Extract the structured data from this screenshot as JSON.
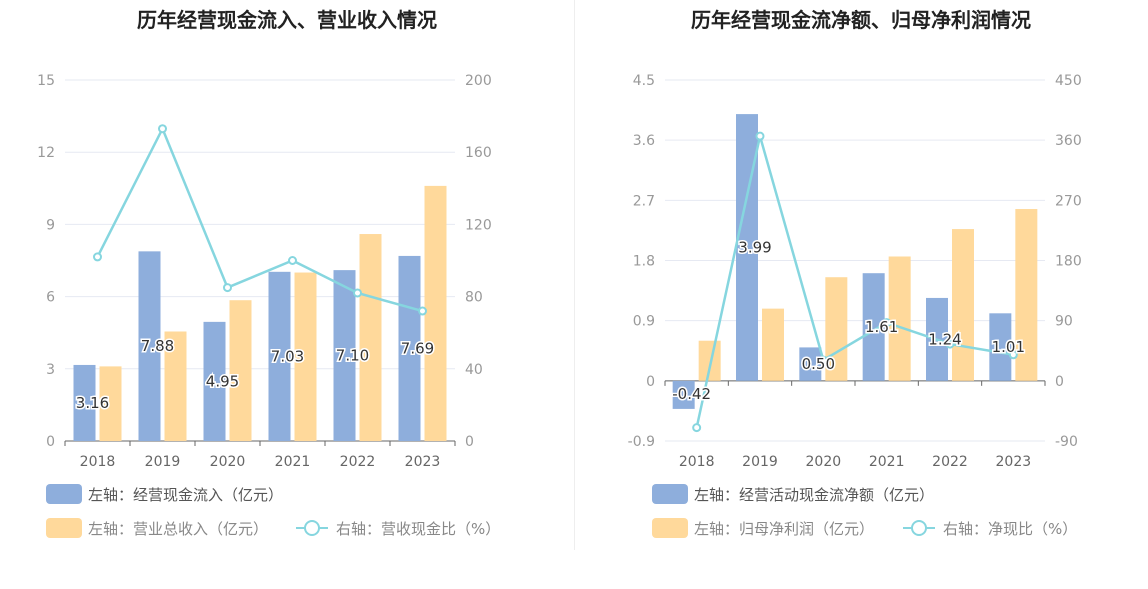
{
  "chart_data": [
    {
      "type": "bar",
      "title": "历年经营现金流入、营业收入情况",
      "categories": [
        "2018",
        "2019",
        "2020",
        "2021",
        "2022",
        "2023"
      ],
      "left_axis": {
        "min": 0,
        "max": 15,
        "ticks": [
          "0",
          "3",
          "6",
          "9",
          "12",
          "15"
        ]
      },
      "right_axis": {
        "min": 0,
        "max": 200,
        "ticks": [
          "0",
          "40",
          "80",
          "120",
          "160",
          "200"
        ]
      },
      "series": [
        {
          "name": "左轴：经营现金流入（亿元）",
          "axis": "left",
          "kind": "bar",
          "color": "#8eaedc",
          "values": [
            3.16,
            7.88,
            4.95,
            7.03,
            7.1,
            7.69
          ],
          "labels": [
            "3.16",
            "7.88",
            "4.95",
            "7.03",
            "7.10",
            "7.69"
          ]
        },
        {
          "name": "左轴：营业总收入（亿元）",
          "axis": "left",
          "kind": "bar",
          "color": "#ffd99b",
          "values": [
            3.1,
            4.55,
            5.85,
            7.0,
            8.6,
            10.6
          ]
        },
        {
          "name": "右轴：营收现金比（%）",
          "axis": "right",
          "kind": "line",
          "color": "#86d6df",
          "values": [
            102,
            173,
            85,
            100,
            82,
            72
          ]
        }
      ]
    },
    {
      "type": "bar",
      "title": "历年经营现金流净额、归母净利润情况",
      "categories": [
        "2018",
        "2019",
        "2020",
        "2021",
        "2022",
        "2023"
      ],
      "left_axis": {
        "min": -0.9,
        "max": 4.5,
        "ticks": [
          "-0.9",
          "0",
          "0.9",
          "1.8",
          "2.7",
          "3.6",
          "4.5"
        ]
      },
      "right_axis": {
        "min": -90,
        "max": 450,
        "ticks": [
          "-90",
          "0",
          "90",
          "180",
          "270",
          "360",
          "450"
        ]
      },
      "series": [
        {
          "name": "左轴：经营活动现金流净额（亿元）",
          "axis": "left",
          "kind": "bar",
          "color": "#8eaedc",
          "values": [
            -0.42,
            3.99,
            0.5,
            1.61,
            1.24,
            1.01
          ],
          "labels": [
            "-0.42",
            "3.99",
            "0.50",
            "1.61",
            "1.24",
            "1.01"
          ]
        },
        {
          "name": "左轴：归母净利润（亿元）",
          "axis": "left",
          "kind": "bar",
          "color": "#ffd99b",
          "values": [
            0.6,
            1.08,
            1.55,
            1.86,
            2.27,
            2.57
          ]
        },
        {
          "name": "右轴：净现比（%）",
          "axis": "right",
          "kind": "line",
          "color": "#86d6df",
          "values": [
            -70,
            366,
            31,
            87,
            55,
            39
          ]
        }
      ]
    }
  ]
}
